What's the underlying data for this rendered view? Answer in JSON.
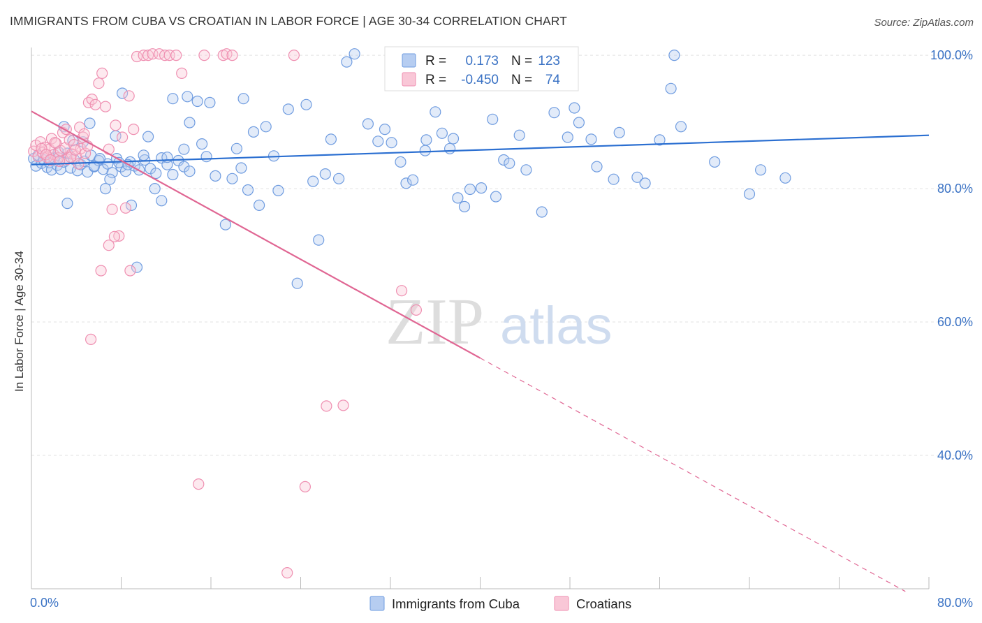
{
  "title": "IMMIGRANTS FROM CUBA VS CROATIAN IN LABOR FORCE | AGE 30-34 CORRELATION CHART",
  "source": "Source: ZipAtlas.com",
  "watermark": {
    "zip": "ZIP",
    "atlas": "atlas"
  },
  "colors": {
    "cuba": "#8fb3e8",
    "cuba_line": "#2b6fd1",
    "croatian": "#f4a3be",
    "croatian_line": "#e06693",
    "axis_text": "#3a72c4"
  },
  "chart_data": {
    "type": "scatter",
    "xlabel": "",
    "ylabel": "In Labor Force | Age 30-34",
    "xlim": [
      0,
      80
    ],
    "ylim": [
      20,
      102
    ],
    "x_tick_labels": [
      {
        "value": 0,
        "label": "0.0%"
      },
      {
        "value": 80,
        "label": "80.0%"
      }
    ],
    "y_tick_labels": [
      {
        "value": 100,
        "label": "100.0%"
      },
      {
        "value": 80,
        "label": "80.0%"
      },
      {
        "value": 60,
        "label": "60.0%"
      },
      {
        "value": 40,
        "label": "40.0%"
      }
    ],
    "legend_position": "bottom",
    "grid": true,
    "stats_box": [
      {
        "r_label": "R =",
        "r_value": "0.173",
        "n_label": "N =",
        "n_value": "123"
      },
      {
        "r_label": "R =",
        "r_value": "-0.450",
        "n_label": "N =",
        "n_value": "74"
      }
    ],
    "series": [
      {
        "name": "Immigrants from Cuba",
        "color": "#8fb3e8",
        "trend": {
          "x": [
            0,
            80
          ],
          "y": [
            83.6,
            88.0
          ]
        },
        "points": [
          [
            0.2,
            84.5
          ],
          [
            0.4,
            83.4
          ],
          [
            0.6,
            85.0
          ],
          [
            0.9,
            83.8
          ],
          [
            1.1,
            84.3
          ],
          [
            1.4,
            83.2
          ],
          [
            1.6,
            83.9
          ],
          [
            1.8,
            82.8
          ],
          [
            2.0,
            84.6
          ],
          [
            2.3,
            83.5
          ],
          [
            2.6,
            82.9
          ],
          [
            2.9,
            84.0
          ],
          [
            3.2,
            85.3
          ],
          [
            3.5,
            83.1
          ],
          [
            3.8,
            84.4
          ],
          [
            4.1,
            82.7
          ],
          [
            4.4,
            83.6
          ],
          [
            4.7,
            84.1
          ],
          [
            5.0,
            82.5
          ],
          [
            5.3,
            85.0
          ],
          [
            5.6,
            83.3
          ],
          [
            6.0,
            84.2
          ],
          [
            6.4,
            82.9
          ],
          [
            6.8,
            83.7
          ],
          [
            7.2,
            82.4
          ],
          [
            7.6,
            84.5
          ],
          [
            8.0,
            83.3
          ],
          [
            8.4,
            82.6
          ],
          [
            8.8,
            84.0
          ],
          [
            9.2,
            83.4
          ],
          [
            9.6,
            82.8
          ],
          [
            10.1,
            84.3
          ],
          [
            10.6,
            83.0
          ],
          [
            11.1,
            82.3
          ],
          [
            11.6,
            84.6
          ],
          [
            12.1,
            83.6
          ],
          [
            12.6,
            82.1
          ],
          [
            13.1,
            84.2
          ],
          [
            13.6,
            83.3
          ],
          [
            14.1,
            82.6
          ],
          [
            2.9,
            89.3
          ],
          [
            3.2,
            77.8
          ],
          [
            3.7,
            87.2
          ],
          [
            4.6,
            87.0
          ],
          [
            5.2,
            89.8
          ],
          [
            5.6,
            83.4
          ],
          [
            6.1,
            84.5
          ],
          [
            6.6,
            80.0
          ],
          [
            7.0,
            81.4
          ],
          [
            7.5,
            87.9
          ],
          [
            8.1,
            94.3
          ],
          [
            8.6,
            83.6
          ],
          [
            8.9,
            77.5
          ],
          [
            9.4,
            68.2
          ],
          [
            10.0,
            85.0
          ],
          [
            10.4,
            87.8
          ],
          [
            11.0,
            80.0
          ],
          [
            11.6,
            78.2
          ],
          [
            12.1,
            84.7
          ],
          [
            12.6,
            93.5
          ],
          [
            13.6,
            85.9
          ],
          [
            14.1,
            89.9
          ],
          [
            14.8,
            93.1
          ],
          [
            15.2,
            86.7
          ],
          [
            15.9,
            92.9
          ],
          [
            16.4,
            81.9
          ],
          [
            17.3,
            74.6
          ],
          [
            17.9,
            81.5
          ],
          [
            18.3,
            86.0
          ],
          [
            18.9,
            93.5
          ],
          [
            19.3,
            79.8
          ],
          [
            19.8,
            88.5
          ],
          [
            20.3,
            77.5
          ],
          [
            20.9,
            89.3
          ],
          [
            21.6,
            84.9
          ],
          [
            22.0,
            79.7
          ],
          [
            22.9,
            91.9
          ],
          [
            23.7,
            65.8
          ],
          [
            24.5,
            92.6
          ],
          [
            25.1,
            81.1
          ],
          [
            25.6,
            72.3
          ],
          [
            26.2,
            82.2
          ],
          [
            26.7,
            87.4
          ],
          [
            27.4,
            81.5
          ],
          [
            28.1,
            99.0
          ],
          [
            28.8,
            100.2
          ],
          [
            30.0,
            89.7
          ],
          [
            30.9,
            87.1
          ],
          [
            31.5,
            88.9
          ],
          [
            32.1,
            86.9
          ],
          [
            32.9,
            84.0
          ],
          [
            33.4,
            80.8
          ],
          [
            34.0,
            81.3
          ],
          [
            35.2,
            87.3
          ],
          [
            36.0,
            91.5
          ],
          [
            36.6,
            88.3
          ],
          [
            37.3,
            86.0
          ],
          [
            37.6,
            87.5
          ],
          [
            38.0,
            78.6
          ],
          [
            38.6,
            77.3
          ],
          [
            39.1,
            79.9
          ],
          [
            40.1,
            80.1
          ],
          [
            41.1,
            90.4
          ],
          [
            41.4,
            78.8
          ],
          [
            42.1,
            84.3
          ],
          [
            42.6,
            83.8
          ],
          [
            43.5,
            88.0
          ],
          [
            44.1,
            82.8
          ],
          [
            45.5,
            76.5
          ],
          [
            46.6,
            91.4
          ],
          [
            47.8,
            87.7
          ],
          [
            48.4,
            92.1
          ],
          [
            48.8,
            89.9
          ],
          [
            49.9,
            87.4
          ],
          [
            50.4,
            83.3
          ],
          [
            51.9,
            81.4
          ],
          [
            52.4,
            88.4
          ],
          [
            54.0,
            81.7
          ],
          [
            54.7,
            80.8
          ],
          [
            56.0,
            87.3
          ],
          [
            57.0,
            95.0
          ],
          [
            57.3,
            100.0
          ],
          [
            57.9,
            89.3
          ],
          [
            60.9,
            84.0
          ],
          [
            64.0,
            79.2
          ],
          [
            65.0,
            82.8
          ],
          [
            67.2,
            81.6
          ],
          [
            2.4,
            85.5
          ],
          [
            7.8,
            83.9
          ],
          [
            15.6,
            84.8
          ],
          [
            13.9,
            93.8
          ],
          [
            18.7,
            83.1
          ],
          [
            35.1,
            85.7
          ]
        ]
      },
      {
        "name": "Croatians",
        "color": "#f4a3be",
        "trend": {
          "x": [
            0,
            40
          ],
          "y": [
            91.6,
            54.6
          ]
        },
        "trend_dashed": {
          "x": [
            40,
            77.9
          ],
          "y": [
            54.6,
            19.6
          ]
        },
        "points": [
          [
            0.2,
            85.6
          ],
          [
            0.4,
            86.5
          ],
          [
            0.6,
            84.8
          ],
          [
            0.8,
            87.0
          ],
          [
            1.0,
            85.4
          ],
          [
            1.2,
            86.2
          ],
          [
            1.4,
            84.7
          ],
          [
            1.6,
            85.9
          ],
          [
            1.8,
            87.5
          ],
          [
            2.0,
            85.1
          ],
          [
            2.2,
            86.8
          ],
          [
            2.4,
            84.6
          ],
          [
            2.6,
            85.7
          ],
          [
            2.8,
            88.4
          ],
          [
            3.0,
            86.1
          ],
          [
            3.2,
            84.4
          ],
          [
            3.4,
            87.3
          ],
          [
            3.6,
            85.2
          ],
          [
            3.8,
            86.6
          ],
          [
            4.0,
            84.9
          ],
          [
            4.2,
            83.7
          ],
          [
            4.4,
            86.0
          ],
          [
            4.6,
            87.7
          ],
          [
            4.8,
            85.3
          ],
          [
            5.0,
            86.4
          ],
          [
            0.9,
            86.0
          ],
          [
            1.3,
            85.1
          ],
          [
            1.7,
            84.3
          ],
          [
            2.1,
            86.9
          ],
          [
            2.5,
            84.1
          ],
          [
            3.1,
            88.9
          ],
          [
            3.5,
            84.7
          ],
          [
            3.9,
            85.8
          ],
          [
            4.3,
            89.2
          ],
          [
            4.7,
            88.2
          ],
          [
            5.1,
            92.9
          ],
          [
            5.4,
            93.4
          ],
          [
            5.7,
            92.6
          ],
          [
            6.0,
            95.8
          ],
          [
            6.3,
            97.3
          ],
          [
            6.6,
            92.3
          ],
          [
            6.9,
            85.9
          ],
          [
            7.2,
            76.9
          ],
          [
            7.5,
            89.5
          ],
          [
            7.8,
            72.9
          ],
          [
            8.1,
            87.7
          ],
          [
            8.4,
            77.1
          ],
          [
            8.7,
            93.9
          ],
          [
            9.1,
            88.9
          ],
          [
            9.4,
            99.8
          ],
          [
            10.0,
            100.0
          ],
          [
            10.4,
            100.0
          ],
          [
            10.8,
            100.2
          ],
          [
            11.4,
            100.2
          ],
          [
            11.9,
            100.0
          ],
          [
            12.3,
            100.0
          ],
          [
            12.9,
            100.0
          ],
          [
            13.4,
            97.3
          ],
          [
            15.4,
            100.0
          ],
          [
            17.1,
            100.0
          ],
          [
            17.4,
            100.2
          ],
          [
            17.9,
            100.0
          ],
          [
            23.4,
            100.0
          ],
          [
            6.2,
            67.7
          ],
          [
            6.9,
            71.5
          ],
          [
            7.4,
            72.8
          ],
          [
            8.8,
            67.7
          ],
          [
            5.3,
            57.4
          ],
          [
            26.3,
            47.4
          ],
          [
            27.8,
            47.5
          ],
          [
            14.9,
            35.7
          ],
          [
            24.4,
            35.3
          ],
          [
            22.8,
            22.4
          ],
          [
            33.0,
            64.7
          ],
          [
            34.3,
            61.8
          ]
        ]
      }
    ]
  }
}
